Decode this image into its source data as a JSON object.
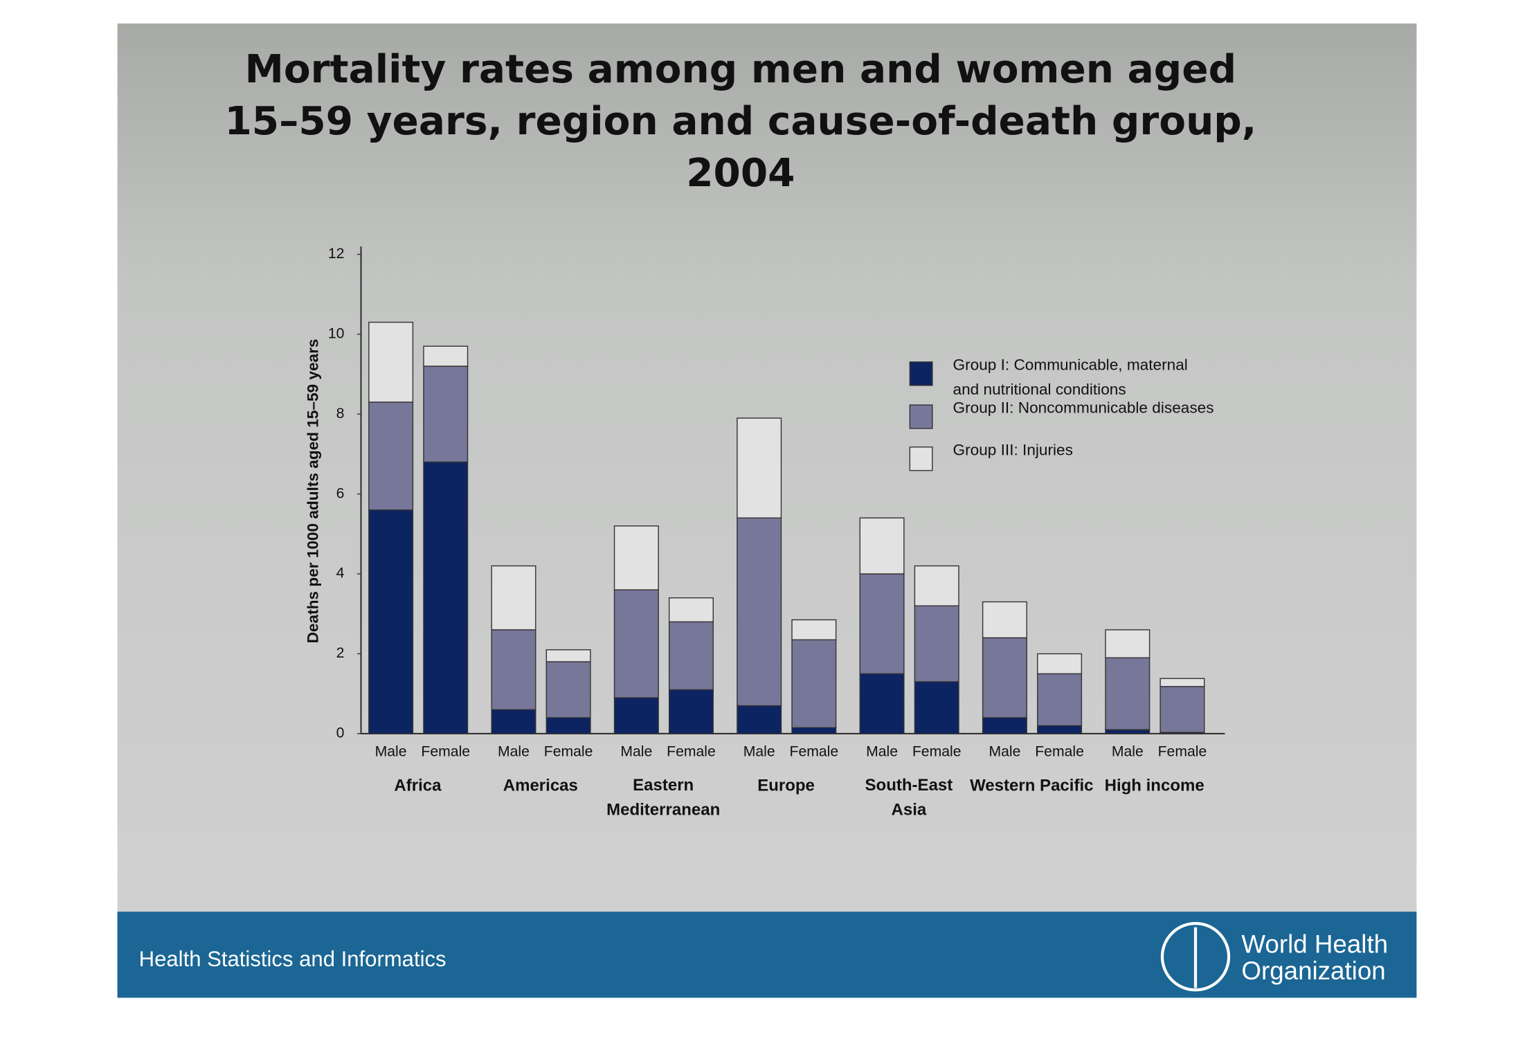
{
  "chart_data": {
    "type": "stacked_bar",
    "title": "Mortality rates among men and women aged\n15–59 years, region and cause-of-death group,\n2004",
    "y_label": "Deaths per 1000 adults aged 15–59 years",
    "categories": [
      "Male",
      "Female",
      "Male",
      "Female",
      "Male",
      "Female",
      "Male",
      "Female",
      "Male",
      "Female",
      "Male",
      "Female",
      "Male",
      "Female"
    ],
    "groups": [
      "Africa",
      "Americas",
      "Eastern\nMediterranean",
      "Europe",
      "South-East\nAsia",
      "Western Pacific",
      "High income"
    ],
    "series": [
      {
        "name": "Group I: Communicable, maternal\nand nutritional conditions",
        "color": "#0d2463",
        "values": [
          5.6,
          6.8,
          0.6,
          0.4,
          0.9,
          1.1,
          0.7,
          0.15,
          1.5,
          1.3,
          0.4,
          0.2,
          0.1,
          0.03
        ]
      },
      {
        "name": "Group II: Noncommunicable diseases",
        "color": "#777799",
        "values": [
          2.7,
          2.4,
          2.0,
          1.4,
          2.7,
          1.7,
          4.7,
          2.2,
          2.5,
          1.9,
          2.0,
          1.3,
          1.8,
          1.15
        ]
      },
      {
        "name": "Group III: Injuries",
        "color": "#e2e2e2",
        "values": [
          2.0,
          0.5,
          1.6,
          0.3,
          1.6,
          0.6,
          2.5,
          0.5,
          1.4,
          1.0,
          0.9,
          0.5,
          0.7,
          0.2
        ]
      }
    ],
    "ylim": [
      0,
      12
    ],
    "yticks": [
      0,
      2,
      4,
      6,
      8,
      10,
      12
    ],
    "footer": "Health Statistics and Informatics",
    "organization": "World Health\nOrganization"
  }
}
